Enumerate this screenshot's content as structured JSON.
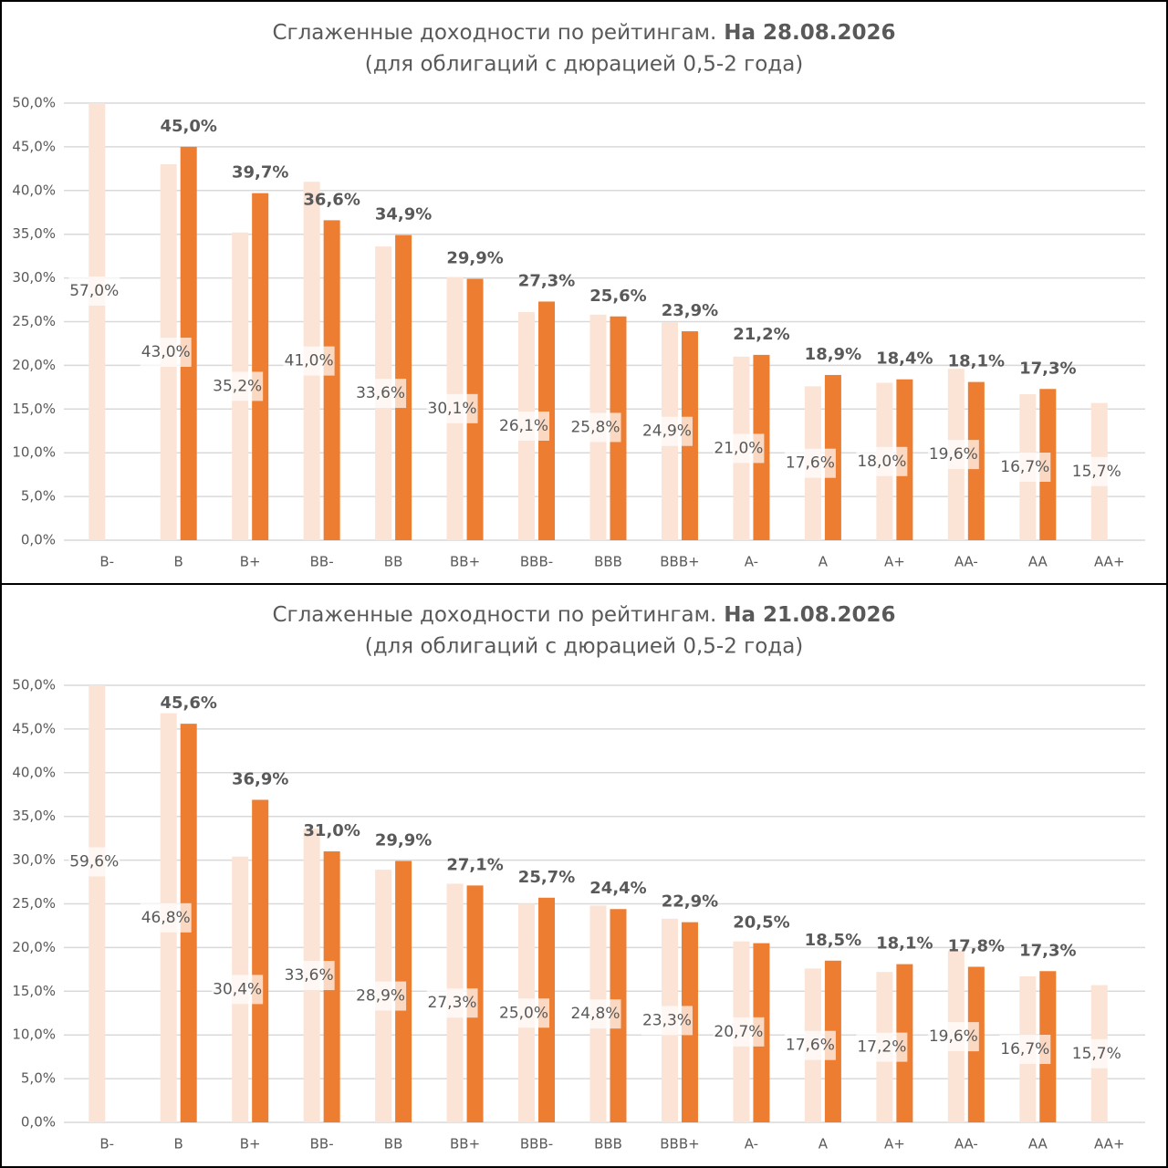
{
  "chart_data": [
    {
      "type": "bar",
      "title": "Сглаженные доходности по рейтингам.",
      "title_bold": "На 28.08.2026",
      "subtitle": "(для облигаций с дюрацией 0,5-2 года)",
      "categories": [
        "B-",
        "B",
        "B+",
        "BB-",
        "BB",
        "BB+",
        "BBB-",
        "BBB",
        "BBB+",
        "A-",
        "A",
        "A+",
        "AA-",
        "AA",
        "AA+"
      ],
      "series": [
        {
          "color": "#fbe3d5",
          "values": [
            57.0,
            43.0,
            35.2,
            41.0,
            33.6,
            30.1,
            26.1,
            25.8,
            24.9,
            21.0,
            17.6,
            18.0,
            19.6,
            16.7,
            15.7
          ],
          "value_labels": [
            "57,0%",
            "43,0%",
            "35,2%",
            "41,0%",
            "33,6%",
            "30,1%",
            "26,1%",
            "25,8%",
            "24,9%",
            "21,0%",
            "17,6%",
            "18,0%",
            "19,6%",
            "16,7%",
            "15,7%"
          ]
        },
        {
          "color": "#ed7d31",
          "values": [
            null,
            45.0,
            39.7,
            36.6,
            34.9,
            29.9,
            27.3,
            25.6,
            23.9,
            21.2,
            18.9,
            18.4,
            18.1,
            17.3,
            null
          ],
          "value_labels": [
            null,
            "45,0%",
            "39,7%",
            "36,6%",
            "34,9%",
            "29,9%",
            "27,3%",
            "25,6%",
            "23,9%",
            "21,2%",
            "18,9%",
            "18,4%",
            "18,1%",
            "17,3%",
            null
          ]
        }
      ],
      "ylim": [
        0,
        50
      ],
      "yticks": [
        {
          "value": 0,
          "label": "0,0%"
        },
        {
          "value": 5,
          "label": "5,0%"
        },
        {
          "value": 10,
          "label": "10,0%"
        },
        {
          "value": 15,
          "label": "15,0%"
        },
        {
          "value": 20,
          "label": "20,0%"
        },
        {
          "value": 25,
          "label": "25,0%"
        },
        {
          "value": 30,
          "label": "30,0%"
        },
        {
          "value": 35,
          "label": "35,0%"
        },
        {
          "value": 40,
          "label": "40,0%"
        },
        {
          "value": 45,
          "label": "45,0%"
        },
        {
          "value": 50,
          "label": "50,0%"
        }
      ],
      "grid": true
    },
    {
      "type": "bar",
      "title": "Сглаженные доходности по рейтингам.",
      "title_bold": "На 21.08.2026",
      "subtitle": "(для облигаций с дюрацией 0,5-2 года)",
      "categories": [
        "B-",
        "B",
        "B+",
        "BB-",
        "BB",
        "BB+",
        "BBB-",
        "BBB",
        "BBB+",
        "A-",
        "A",
        "A+",
        "AA-",
        "AA",
        "AA+"
      ],
      "series": [
        {
          "color": "#fbe3d5",
          "values": [
            59.6,
            46.8,
            30.4,
            33.6,
            28.9,
            27.3,
            25.0,
            24.8,
            23.3,
            20.7,
            17.6,
            17.2,
            19.6,
            16.7,
            15.7
          ],
          "value_labels": [
            "59,6%",
            "46,8%",
            "30,4%",
            "33,6%",
            "28,9%",
            "27,3%",
            "25,0%",
            "24,8%",
            "23,3%",
            "20,7%",
            "17,6%",
            "17,2%",
            "19,6%",
            "16,7%",
            "15,7%"
          ]
        },
        {
          "color": "#ed7d31",
          "values": [
            null,
            45.6,
            36.9,
            31.0,
            29.9,
            27.1,
            25.7,
            24.4,
            22.9,
            20.5,
            18.5,
            18.1,
            17.8,
            17.3,
            null
          ],
          "value_labels": [
            null,
            "45,6%",
            "36,9%",
            "31,0%",
            "29,9%",
            "27,1%",
            "25,7%",
            "24,4%",
            "22,9%",
            "20,5%",
            "18,5%",
            "18,1%",
            "17,8%",
            "17,3%",
            null
          ]
        }
      ],
      "ylim": [
        0,
        50
      ],
      "yticks": [
        {
          "value": 0,
          "label": "0,0%"
        },
        {
          "value": 5,
          "label": "5,0%"
        },
        {
          "value": 10,
          "label": "10,0%"
        },
        {
          "value": 15,
          "label": "15,0%"
        },
        {
          "value": 20,
          "label": "20,0%"
        },
        {
          "value": 25,
          "label": "25,0%"
        },
        {
          "value": 30,
          "label": "30,0%"
        },
        {
          "value": 35,
          "label": "35,0%"
        },
        {
          "value": 40,
          "label": "40,0%"
        },
        {
          "value": 45,
          "label": "45,0%"
        },
        {
          "value": 50,
          "label": "50,0%"
        }
      ],
      "grid": true
    }
  ]
}
